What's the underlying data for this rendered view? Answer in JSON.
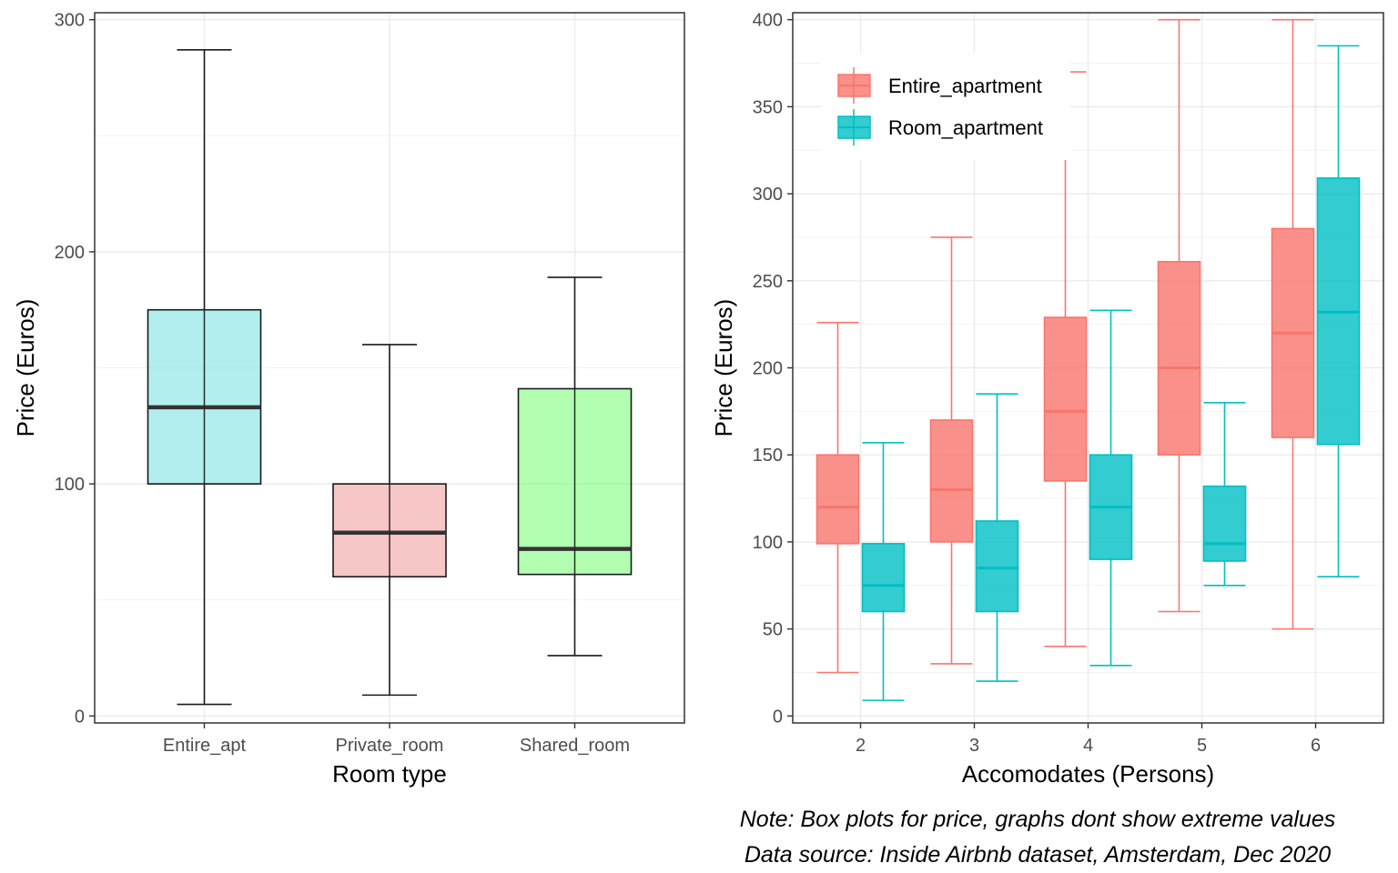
{
  "chart_data": [
    {
      "type": "boxplot",
      "xlabel": "Room type",
      "ylabel": "Price (Euros)",
      "ylim": [
        -3,
        303
      ],
      "yticks": [
        0,
        100,
        200,
        300
      ],
      "grid": true,
      "categories": [
        "Entire_apt",
        "Private_room",
        "Shared_room"
      ],
      "boxes": [
        {
          "category": "Entire_apt",
          "min": 5,
          "q1": 100,
          "median": 133,
          "q3": 175,
          "max": 287,
          "color": "#66dddd"
        },
        {
          "category": "Private_room",
          "min": 9,
          "q1": 60,
          "median": 79,
          "q3": 100,
          "max": 160,
          "color": "#f08f8f"
        },
        {
          "category": "Shared_room",
          "min": 26,
          "q1": 61,
          "median": 72,
          "q3": 141,
          "max": 189,
          "color": "#66ff66"
        }
      ]
    },
    {
      "type": "boxplot",
      "xlabel": "Accomodates (Persons)",
      "ylabel": "Price (Euros)",
      "ylim": [
        -4,
        404
      ],
      "yticks": [
        0,
        50,
        100,
        150,
        200,
        250,
        300,
        350,
        400
      ],
      "grid": true,
      "categories": [
        "2",
        "3",
        "4",
        "5",
        "6"
      ],
      "legend": {
        "position": "top-left",
        "entries": [
          "Entire_apartment",
          "Room_apartment"
        ]
      },
      "series": [
        {
          "name": "Entire_apartment",
          "color": "#f8766d",
          "boxes": [
            {
              "category": "2",
              "min": 25,
              "q1": 99,
              "median": 120,
              "q3": 150,
              "max": 226
            },
            {
              "category": "3",
              "min": 30,
              "q1": 100,
              "median": 130,
              "q3": 170,
              "max": 275
            },
            {
              "category": "4",
              "min": 40,
              "q1": 135,
              "median": 175,
              "q3": 229,
              "max": 370
            },
            {
              "category": "5",
              "min": 60,
              "q1": 150,
              "median": 200,
              "q3": 261,
              "max": 400
            },
            {
              "category": "6",
              "min": 50,
              "q1": 160,
              "median": 220,
              "q3": 280,
              "max": 400
            }
          ]
        },
        {
          "name": "Room_apartment",
          "color": "#00bfc4",
          "boxes": [
            {
              "category": "2",
              "min": 9,
              "q1": 60,
              "median": 75,
              "q3": 99,
              "max": 157
            },
            {
              "category": "3",
              "min": 20,
              "q1": 60,
              "median": 85,
              "q3": 112,
              "max": 185
            },
            {
              "category": "4",
              "min": 29,
              "q1": 90,
              "median": 120,
              "q3": 150,
              "max": 233
            },
            {
              "category": "5",
              "min": 75,
              "q1": 89,
              "median": 99,
              "q3": 132,
              "max": 180
            },
            {
              "category": "6",
              "min": 80,
              "q1": 156,
              "median": 232,
              "q3": 309,
              "max": 385
            }
          ]
        }
      ]
    }
  ],
  "captions": {
    "note": "Note: Box plots for price, graphs dont show extreme values",
    "source": "Data source: Inside Airbnb dataset, Amsterdam, Dec 2020"
  }
}
